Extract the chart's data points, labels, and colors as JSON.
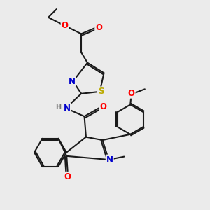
{
  "background_color": "#ebebeb",
  "bond_color": "#1a1a1a",
  "atom_colors": {
    "O": "#ff0000",
    "N": "#0000cc",
    "S": "#bbaa00",
    "H": "#777777",
    "C": "#1a1a1a"
  },
  "lw": 1.5,
  "fs": 7.5
}
